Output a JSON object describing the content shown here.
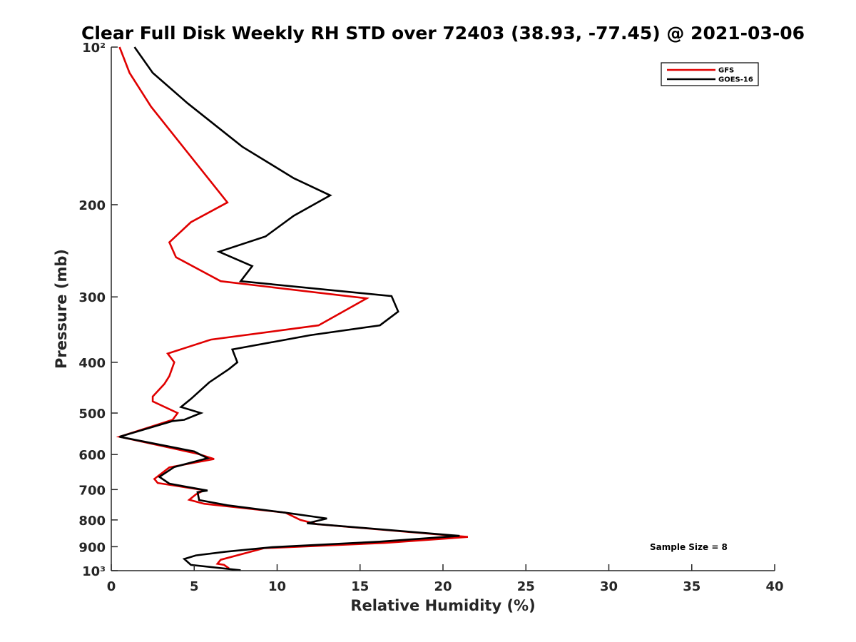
{
  "chart_data": {
    "type": "line",
    "title": "Clear Full Disk Weekly RH STD over 72403 (38.93, -77.45) @ 2021-03-06",
    "xlabel": "Relative Humidity (%)",
    "ylabel": "Pressure (mb)",
    "xlim": [
      0,
      40
    ],
    "ylim": [
      100,
      1000
    ],
    "y_scale": "log",
    "y_reversed": true,
    "x_ticks": [
      0,
      5,
      10,
      15,
      20,
      25,
      30,
      35,
      40
    ],
    "y_ticks": [
      100,
      200,
      300,
      400,
      500,
      600,
      700,
      800,
      900,
      1000
    ],
    "y_tick_labels": [
      "10²",
      "200",
      "300",
      "400",
      "500",
      "600",
      "700",
      "800",
      "900",
      "10³"
    ],
    "grid": false,
    "legend_position": "top-right",
    "annotation": "Sample Size = 8",
    "series": [
      {
        "name": "GFS",
        "color": "#e00000",
        "x": [
          0.5,
          1.1,
          2.4,
          7.0,
          4.8,
          3.5,
          3.9,
          6.6,
          15.4,
          12.5,
          6.0,
          3.4,
          3.8,
          3.5,
          3.2,
          2.5,
          2.5,
          4.0,
          3.7,
          0.5,
          5.2,
          6.2,
          3.5,
          2.6,
          2.8,
          5.6,
          5.1,
          4.7,
          5.6,
          10.5,
          11.4,
          12.4,
          21.5,
          16.5,
          9.2,
          6.6,
          6.4,
          6.8,
          7.1
        ],
        "y": [
          100,
          112,
          130,
          198,
          216,
          236,
          252,
          280,
          302,
          340,
          362,
          385,
          400,
          425,
          440,
          465,
          475,
          500,
          515,
          555,
          598,
          612,
          635,
          668,
          680,
          702,
          715,
          732,
          745,
          775,
          800,
          815,
          862,
          885,
          906,
          953,
          970,
          975,
          990
        ]
      },
      {
        "name": "GOES-16",
        "color": "#000000",
        "x": [
          1.4,
          2.5,
          4.6,
          7.9,
          11.0,
          13.2,
          11.0,
          9.3,
          6.5,
          8.5,
          7.8,
          16.9,
          17.3,
          16.2,
          12.0,
          7.3,
          7.6,
          7.1,
          5.9,
          4.8,
          4.2,
          5.4,
          4.4,
          3.7,
          0.5,
          5.0,
          5.8,
          3.8,
          2.9,
          3.5,
          5.8,
          5.2,
          5.3,
          7.0,
          10.5,
          13.0,
          11.8,
          21.0,
          16.2,
          9.7,
          6.9,
          5.1,
          4.4,
          4.8,
          7.8
        ],
        "y": [
          100,
          112,
          128,
          155,
          178,
          192,
          210,
          230,
          246,
          262,
          280,
          299,
          320,
          340,
          355,
          378,
          400,
          412,
          437,
          470,
          487,
          500,
          515,
          518,
          555,
          592,
          610,
          634,
          662,
          682,
          703,
          708,
          733,
          750,
          775,
          795,
          812,
          858,
          880,
          902,
          920,
          935,
          950,
          975,
          998
        ]
      }
    ]
  }
}
